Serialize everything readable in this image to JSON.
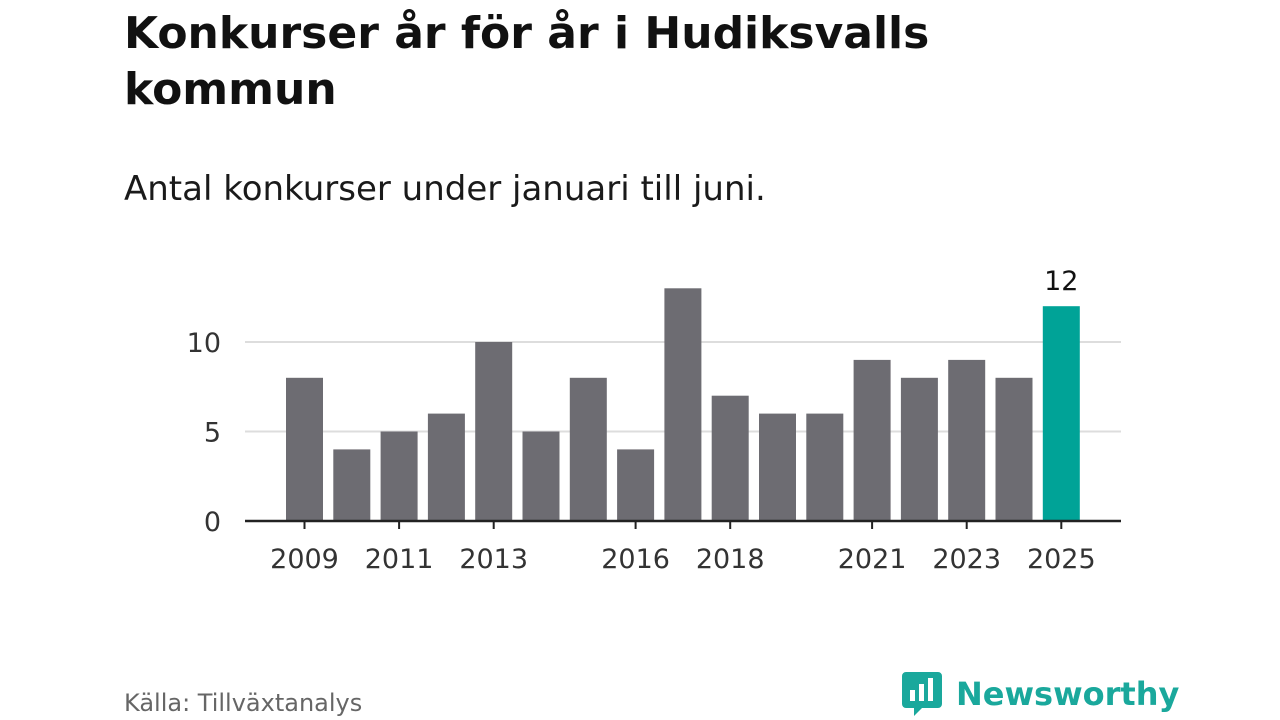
{
  "header": {
    "title": "Konkurser år för år i Hudiksvalls kommun",
    "subtitle": "Antal konkurser under januari till juni."
  },
  "footer": {
    "source": "Källa: Tillväxtanalys",
    "brand": "Newsworthy",
    "brand_icon": "bar-chart-speech-bubble-icon"
  },
  "colors": {
    "bar": "#6d6c72",
    "highlight": "#00a397",
    "grid": "#dddddd",
    "axis": "#222222",
    "brand": "#1aa89c"
  },
  "chart_data": {
    "type": "bar",
    "title": "Konkurser år för år i Hudiksvalls kommun",
    "subtitle": "Antal konkurser under januari till juni.",
    "xlabel": "",
    "ylabel": "",
    "categories": [
      "2009",
      "2010",
      "2011",
      "2012",
      "2013",
      "2014",
      "2015",
      "2016",
      "2017",
      "2018",
      "2019",
      "2020",
      "2021",
      "2022",
      "2023",
      "2024",
      "2025"
    ],
    "values": [
      8,
      4,
      5,
      6,
      10,
      5,
      8,
      4,
      13,
      7,
      6,
      6,
      9,
      8,
      9,
      8,
      12
    ],
    "x_tick_labels": [
      "2009",
      "2011",
      "2013",
      "2016",
      "2018",
      "2021",
      "2023",
      "2025"
    ],
    "y_ticks": [
      0,
      5,
      10
    ],
    "ylim": [
      0,
      13
    ],
    "grid": true,
    "highlight_category": "2025",
    "data_labels": [
      {
        "category": "2025",
        "text": "12"
      }
    ]
  }
}
